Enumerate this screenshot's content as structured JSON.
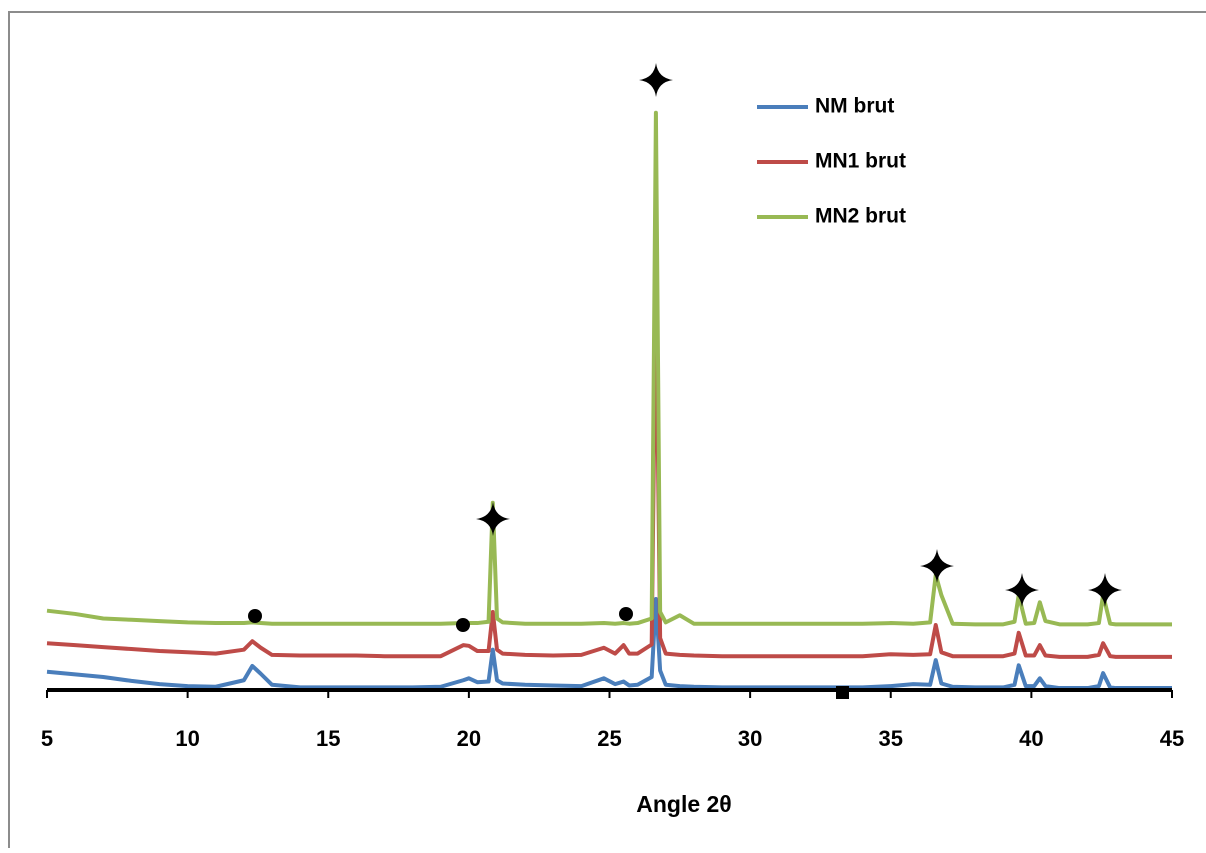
{
  "chart_data": {
    "type": "line",
    "x_label": "Angle 2θ",
    "x": [
      5,
      6,
      7,
      8,
      9,
      10,
      11,
      12,
      12.3,
      12.6,
      13,
      14,
      15,
      16,
      17,
      18,
      19,
      19.8,
      20,
      20.3,
      20.7,
      20.85,
      21,
      21.2,
      22,
      23,
      24,
      24.8,
      25.2,
      25.5,
      25.7,
      26,
      26.5,
      26.65,
      26.8,
      27,
      27.5,
      28,
      29,
      30,
      31,
      32,
      33,
      34,
      35,
      35.8,
      36.4,
      36.6,
      36.8,
      37.2,
      38,
      39,
      39.4,
      39.55,
      39.8,
      40.1,
      40.3,
      40.5,
      41,
      42,
      42.4,
      42.55,
      42.8,
      43,
      44,
      45
    ],
    "series": [
      {
        "name": "NM brut",
        "color": "#4a7ebb",
        "values": [
          2.8,
          2.4,
          2.0,
          1.4,
          0.9,
          0.6,
          0.5,
          1.5,
          3.7,
          2.5,
          0.8,
          0.4,
          0.4,
          0.4,
          0.4,
          0.4,
          0.5,
          1.5,
          1.8,
          1.2,
          1.3,
          6.2,
          1.5,
          1.0,
          0.8,
          0.7,
          0.6,
          1.8,
          0.9,
          1.3,
          0.7,
          0.8,
          2,
          14,
          3,
          0.8,
          0.6,
          0.5,
          0.4,
          0.4,
          0.4,
          0.4,
          0.4,
          0.4,
          0.6,
          0.9,
          0.8,
          4.6,
          1.0,
          0.5,
          0.4,
          0.4,
          0.8,
          3.8,
          0.6,
          0.6,
          1.8,
          0.6,
          0.3,
          0.3,
          0.6,
          2.6,
          0.4,
          0.3,
          0.3,
          0.3
        ]
      },
      {
        "name": "MN1 brut",
        "color": "#be4b48",
        "values": [
          7.2,
          6.9,
          6.6,
          6.3,
          6.0,
          5.8,
          5.6,
          6.2,
          7.5,
          6.5,
          5.4,
          5.3,
          5.3,
          5.3,
          5.2,
          5.2,
          5.2,
          6.9,
          6.8,
          6.0,
          6.0,
          12,
          6.2,
          5.6,
          5.4,
          5.3,
          5.4,
          6.5,
          5.6,
          6.9,
          5.6,
          5.6,
          7,
          63,
          8,
          5.6,
          5.4,
          5.3,
          5.2,
          5.2,
          5.2,
          5.2,
          5.2,
          5.2,
          5.5,
          5.4,
          5.5,
          10,
          5.8,
          5.2,
          5.2,
          5.2,
          5.6,
          8.8,
          5.3,
          5.3,
          6.9,
          5.3,
          5.1,
          5.1,
          5.4,
          7.2,
          5.2,
          5.1,
          5.1,
          5.1
        ]
      },
      {
        "name": "MN2 brut",
        "color": "#98b954",
        "values": [
          12.2,
          11.7,
          11.0,
          10.8,
          10.6,
          10.4,
          10.3,
          10.3,
          10.4,
          10.3,
          10.2,
          10.2,
          10.2,
          10.2,
          10.2,
          10.2,
          10.2,
          10.3,
          10.3,
          10.3,
          10.5,
          28.8,
          11,
          10.4,
          10.2,
          10.2,
          10.2,
          10.3,
          10.2,
          10.3,
          10.2,
          10.3,
          11,
          88.8,
          12,
          10.4,
          11.5,
          10.2,
          10.2,
          10.2,
          10.2,
          10.2,
          10.2,
          10.2,
          10.3,
          10.2,
          10.4,
          17.7,
          14.6,
          10.2,
          10.1,
          10.1,
          10.5,
          14.6,
          10.2,
          10.3,
          13.5,
          10.6,
          10.1,
          10.1,
          10.3,
          14.6,
          10.2,
          10.1,
          10.1,
          10.1
        ]
      }
    ],
    "xlim": [
      5,
      45
    ],
    "xticks": [
      5,
      10,
      15,
      20,
      25,
      30,
      35,
      40,
      45
    ],
    "ylim": [
      0,
      100
    ],
    "legend": "top-right"
  }
}
